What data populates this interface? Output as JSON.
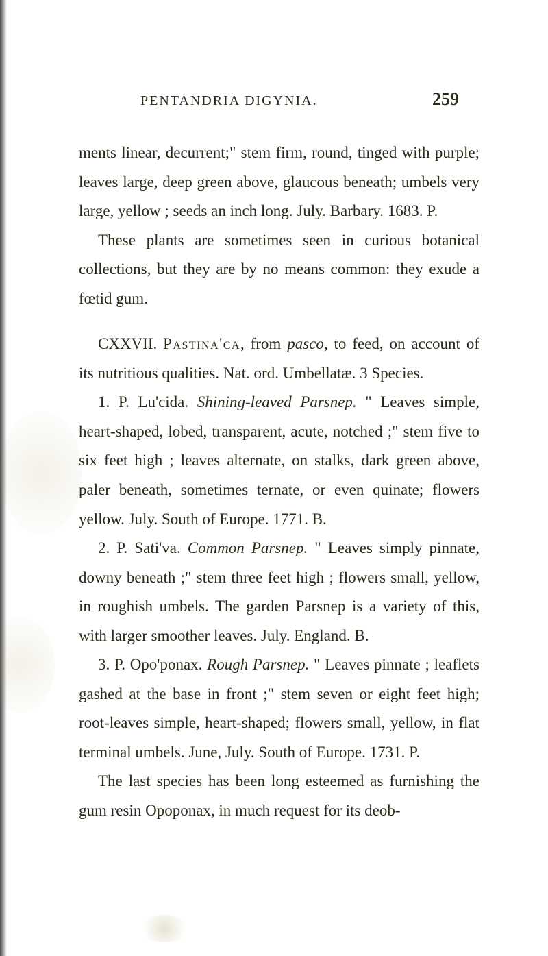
{
  "page": {
    "background_color": "#ffffff",
    "text_color": "#2a2a1a",
    "font_family": "Georgia, serif",
    "body_fontsize": 23,
    "line_height": 1.85,
    "running_head_fontsize": 20,
    "page_number_fontsize": 26
  },
  "header": {
    "running_head": "PENTANDRIA DIGYNIA.",
    "page_number": "259"
  },
  "paragraphs": {
    "p1": "ments linear, decurrent;\" stem firm, round, tinged with purple; leaves large, deep green above, glaucous beneath; umbels very large, yellow ; seeds an inch long. July. Barbary. 1683. P.",
    "p2": "These plants are sometimes seen in curious botanical collections, but they are by no means common: they exude a fœtid gum.",
    "p3_prefix": "CXXVII. ",
    "p3_smallcaps": "Pastina'ca",
    "p3_rest": ", from ",
    "p3_italic": "pasco",
    "p3_end": ", to feed, on account of its nutritious qualities. Nat. ord. Umbellatæ. 3 Species.",
    "p4_num": "1. P. Lu'cida. ",
    "p4_italic": "Shining-leaved Parsnep.",
    "p4_rest": " \" Leaves simple, heart-shaped, lobed, transparent, acute, notched ;\" stem five to six feet high ; leaves alternate, on stalks, dark green above, paler beneath, sometimes ternate, or even quinate; flowers yellow. July. South of Europe. 1771. B.",
    "p5_num": "2. P. Sati'va. ",
    "p5_italic": "Common Parsnep.",
    "p5_rest": " \" Leaves simply pinnate, downy beneath ;\" stem three feet high ; flowers small, yellow, in roughish umbels. The garden Parsnep is a variety of this, with larger smoother leaves. July. England. B.",
    "p6_num": "3. P. Opo'ponax. ",
    "p6_italic": "Rough Parsnep.",
    "p6_rest": " \" Leaves pinnate ; leaflets gashed at the base in front ;\" stem seven or eight feet high; root-leaves simple, heart-shaped; flowers small, yellow, in flat terminal umbels. June, July. South of Europe. 1731. P.",
    "p7": "The last species has been long esteemed as furnishing the gum resin Opoponax, in much request for its deob-"
  }
}
